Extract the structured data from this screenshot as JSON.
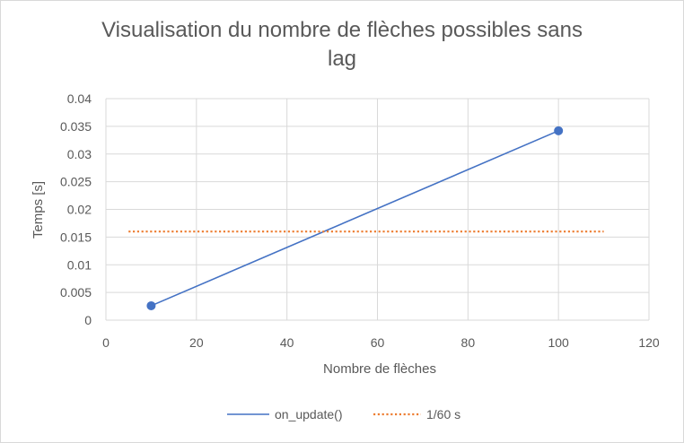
{
  "chart_data": {
    "type": "scatter",
    "title": "Visualisation du nombre de flèches possibles sans lag",
    "title_lines": [
      "Visualisation du nombre de flèches possibles sans",
      "lag"
    ],
    "xlabel": "Nombre de flèches",
    "ylabel": "Temps [s]",
    "xlim": [
      0,
      120
    ],
    "ylim": [
      0,
      0.04
    ],
    "x_ticks": [
      "0",
      "20",
      "40",
      "60",
      "80",
      "100",
      "120"
    ],
    "y_ticks": [
      "0",
      "0.005",
      "0.01",
      "0.015",
      "0.02",
      "0.025",
      "0.03",
      "0.035",
      "0.04"
    ],
    "grid": true,
    "legend_position": "bottom",
    "series": [
      {
        "name": "on_update()",
        "color": "#4472c4",
        "style": "solid-with-markers",
        "points": [
          {
            "x": 10,
            "y": 0.0026
          },
          {
            "x": 100,
            "y": 0.0342
          }
        ]
      },
      {
        "name": "1/60 s",
        "color": "#ed7d31",
        "style": "dotted",
        "points": [
          {
            "x": 5,
            "y": 0.016
          },
          {
            "x": 110,
            "y": 0.016
          }
        ]
      }
    ]
  }
}
